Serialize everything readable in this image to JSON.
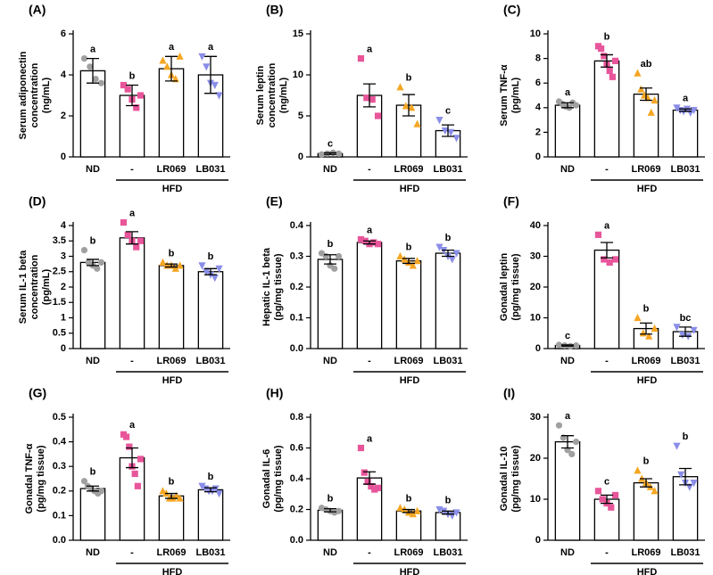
{
  "chart_data": [
    {
      "type": "bar",
      "panel": "(A)",
      "ylabel": [
        "Serum adiponectin",
        "concentration",
        "(ng/mL)"
      ],
      "categories": [
        "ND",
        "-",
        "LR069",
        "LB031"
      ],
      "group_label": "HFD",
      "values": [
        4.2,
        3.0,
        4.3,
        4.0
      ],
      "errors": [
        0.6,
        0.5,
        0.6,
        0.9
      ],
      "letters": [
        "a",
        "b",
        "a",
        "a"
      ],
      "points": [
        [
          4.8,
          4.4,
          3.8,
          3.6
        ],
        [
          3.5,
          3.3,
          2.8,
          2.4,
          3.0
        ],
        [
          4.7,
          4.4,
          4.0,
          3.8,
          4.9
        ],
        [
          4.9,
          4.4,
          3.6,
          3.5,
          3.0
        ]
      ],
      "ylim": [
        0,
        6
      ],
      "yticks": [
        0,
        2,
        4,
        6
      ],
      "colors": [
        "#a0a0a0",
        "#e8559a",
        "#f5a623",
        "#8a8ee8"
      ],
      "markers": [
        "circle",
        "square",
        "triangle-up",
        "triangle-down"
      ]
    },
    {
      "type": "bar",
      "panel": "(B)",
      "ylabel": [
        "Serum leptin",
        "concentration",
        "(ng/mL)"
      ],
      "categories": [
        "ND",
        "-",
        "LR069",
        "LB031"
      ],
      "group_label": "HFD",
      "values": [
        0.4,
        7.5,
        6.3,
        3.2
      ],
      "errors": [
        0.1,
        1.4,
        1.3,
        0.7
      ],
      "letters": [
        "c",
        "a",
        "b",
        "c"
      ],
      "points": [
        [
          0.3,
          0.4,
          0.5,
          0.4
        ],
        [
          12,
          7.2,
          7,
          5
        ],
        [
          8.5,
          6.2,
          6,
          4
        ],
        [
          4.5,
          3.2,
          3,
          2.3
        ]
      ],
      "ylim": [
        0,
        15
      ],
      "yticks": [
        0,
        5,
        10,
        15
      ],
      "colors": [
        "#a0a0a0",
        "#e8559a",
        "#f5a623",
        "#8a8ee8"
      ],
      "markers": [
        "circle",
        "square",
        "triangle-up",
        "triangle-down"
      ]
    },
    {
      "type": "bar",
      "panel": "(C)",
      "ylabel": [
        "Serum TNF-α",
        "(pg/mL)"
      ],
      "categories": [
        "ND",
        "-",
        "LR069",
        "LB031"
      ],
      "group_label": "HFD",
      "values": [
        4.2,
        7.8,
        5.1,
        3.8
      ],
      "errors": [
        0.2,
        0.5,
        0.5,
        0.1
      ],
      "letters": [
        "a",
        "b",
        "ab",
        "a"
      ],
      "points": [
        [
          4.5,
          4.3,
          4.1,
          4.0,
          4.4,
          4.2
        ],
        [
          9.0,
          8.8,
          8.2,
          7.5,
          7.0,
          6.5,
          7.8
        ],
        [
          6.8,
          5.5,
          5.0,
          4.8,
          3.6,
          4.6
        ],
        [
          4.0,
          3.8,
          3.7,
          3.9,
          3.6,
          3.8
        ]
      ],
      "ylim": [
        0,
        10
      ],
      "yticks": [
        0,
        2,
        4,
        6,
        8,
        10
      ],
      "colors": [
        "#a0a0a0",
        "#e8559a",
        "#f5a623",
        "#8a8ee8"
      ],
      "markers": [
        "circle",
        "square",
        "triangle-up",
        "triangle-down"
      ]
    },
    {
      "type": "bar",
      "panel": "(D)",
      "ylabel": [
        "Serum IL-1 beta",
        "concentration",
        "(pg/mL)"
      ],
      "categories": [
        "ND",
        "-",
        "LR069",
        "LB031"
      ],
      "group_label": "HFD",
      "values": [
        2.8,
        3.6,
        2.7,
        2.5
      ],
      "errors": [
        0.1,
        0.2,
        0.05,
        0.1
      ],
      "letters": [
        "b",
        "a",
        "b",
        "b"
      ],
      "points": [
        [
          3.2,
          2.8,
          2.7,
          2.6,
          2.8
        ],
        [
          4.1,
          3.7,
          3.5,
          3.3,
          3.5
        ],
        [
          2.8,
          2.7,
          2.7,
          2.6,
          2.7
        ],
        [
          2.7,
          2.5,
          2.4,
          2.3,
          2.6
        ]
      ],
      "ylim": [
        0,
        4
      ],
      "yticks": [
        0,
        0.5,
        1,
        1.5,
        2,
        2.5,
        3,
        3.5,
        4
      ],
      "colors": [
        "#a0a0a0",
        "#e8559a",
        "#f5a623",
        "#8a8ee8"
      ],
      "markers": [
        "circle",
        "square",
        "triangle-up",
        "triangle-down"
      ]
    },
    {
      "type": "bar",
      "panel": "(E)",
      "ylabel": [
        "Hepatic IL-1 beta",
        "(pg/mg tissue)"
      ],
      "categories": [
        "ND",
        "-",
        "LR069",
        "LB031"
      ],
      "group_label": "HFD",
      "values": [
        0.29,
        0.345,
        0.285,
        0.31
      ],
      "errors": [
        0.015,
        0.005,
        0.008,
        0.01
      ],
      "letters": [
        "b",
        "a",
        "b",
        "b"
      ],
      "points": [
        [
          0.31,
          0.3,
          0.27,
          0.26,
          0.3
        ],
        [
          0.355,
          0.35,
          0.34,
          0.345,
          0.34
        ],
        [
          0.3,
          0.29,
          0.28,
          0.27,
          0.285
        ],
        [
          0.33,
          0.32,
          0.3,
          0.29,
          0.31
        ]
      ],
      "ylim": [
        0,
        0.4
      ],
      "yticks": [
        {
          "value": 0,
          "label": "0.0"
        },
        0.1,
        0.2,
        0.3,
        0.4
      ],
      "colors": [
        "#a0a0a0",
        "#e8559a",
        "#f5a623",
        "#8a8ee8"
      ],
      "markers": [
        "circle",
        "square",
        "triangle-up",
        "triangle-down"
      ]
    },
    {
      "type": "bar",
      "panel": "(F)",
      "ylabel": [
        "Gonadal leptin",
        "(pg/mg tissue)"
      ],
      "categories": [
        "ND",
        "-",
        "LR069",
        "LB031"
      ],
      "group_label": "HFD",
      "values": [
        1,
        32,
        6.5,
        5.5
      ],
      "errors": [
        0.2,
        2.5,
        1.8,
        1.5
      ],
      "letters": [
        "c",
        "a",
        "b",
        "bc"
      ],
      "points": [
        [
          1.2,
          1,
          0.8,
          1
        ],
        [
          37,
          29,
          28,
          29
        ],
        [
          10,
          5,
          4,
          6.5
        ],
        [
          7,
          4.5,
          4,
          6
        ]
      ],
      "ylim": [
        0,
        40
      ],
      "yticks": [
        0,
        10,
        20,
        30,
        40
      ],
      "colors": [
        "#a0a0a0",
        "#e8559a",
        "#f5a623",
        "#8a8ee8"
      ],
      "markers": [
        "circle",
        "square",
        "triangle-up",
        "triangle-down"
      ]
    },
    {
      "type": "bar",
      "panel": "(G)",
      "ylabel": [
        "Gonadal TNF-α",
        "(pg/mg tissue)"
      ],
      "categories": [
        "ND",
        "-",
        "LR069",
        "LB031"
      ],
      "group_label": "HFD",
      "values": [
        0.21,
        0.335,
        0.18,
        0.205
      ],
      "errors": [
        0.01,
        0.04,
        0.01,
        0.008
      ],
      "letters": [
        "b",
        "a",
        "b",
        "b"
      ],
      "points": [
        [
          0.24,
          0.22,
          0.21,
          0.2,
          0.19,
          0.2
        ],
        [
          0.43,
          0.42,
          0.38,
          0.3,
          0.27,
          0.22,
          0.33
        ],
        [
          0.2,
          0.19,
          0.17,
          0.17,
          0.18,
          0.17
        ],
        [
          0.22,
          0.21,
          0.2,
          0.2,
          0.21,
          0.19
        ]
      ],
      "ylim": [
        0,
        0.5
      ],
      "yticks": [
        {
          "value": 0,
          "label": "0.0"
        },
        0.1,
        0.2,
        0.3,
        0.4,
        0.5
      ],
      "colors": [
        "#a0a0a0",
        "#e8559a",
        "#f5a623",
        "#8a8ee8"
      ],
      "markers": [
        "circle",
        "square",
        "triangle-up",
        "triangle-down"
      ]
    },
    {
      "type": "bar",
      "panel": "(H)",
      "ylabel": [
        "Gonadal IL-6",
        "(pg/mg tissue)"
      ],
      "categories": [
        "ND",
        "-",
        "LR069",
        "LB031"
      ],
      "group_label": "HFD",
      "values": [
        0.195,
        0.405,
        0.19,
        0.18
      ],
      "errors": [
        0.01,
        0.04,
        0.01,
        0.01
      ],
      "letters": [
        "b",
        "a",
        "b",
        "b"
      ],
      "points": [
        [
          0.21,
          0.2,
          0.19,
          0.18,
          0.19
        ],
        [
          0.6,
          0.44,
          0.38,
          0.35,
          0.33,
          0.34
        ],
        [
          0.21,
          0.2,
          0.18,
          0.17,
          0.19
        ],
        [
          0.2,
          0.19,
          0.17,
          0.16,
          0.18
        ]
      ],
      "ylim": [
        0,
        0.8
      ],
      "yticks": [
        {
          "value": 0,
          "label": "0.0"
        },
        0.2,
        0.4,
        0.6,
        0.8
      ],
      "colors": [
        "#a0a0a0",
        "#e8559a",
        "#f5a623",
        "#8a8ee8"
      ],
      "markers": [
        "circle",
        "square",
        "triangle-up",
        "triangle-down"
      ]
    },
    {
      "type": "bar",
      "panel": "(I)",
      "ylabel": [
        "Gonadal IL-10",
        "(pg/mg tissue)"
      ],
      "categories": [
        "ND",
        "-",
        "LR069",
        "LB031"
      ],
      "group_label": "HFD",
      "values": [
        24,
        10,
        14,
        15.5
      ],
      "errors": [
        1.5,
        1,
        1,
        2
      ],
      "letters": [
        "a",
        "c",
        "b",
        "b"
      ],
      "points": [
        [
          28,
          25,
          22,
          21,
          24
        ],
        [
          12,
          10,
          9,
          8,
          11
        ],
        [
          17,
          15,
          14,
          13,
          12
        ],
        [
          23,
          16,
          14,
          13,
          14
        ]
      ],
      "ylim": [
        0,
        30
      ],
      "yticks": [
        0,
        10,
        20,
        30
      ],
      "colors": [
        "#a0a0a0",
        "#e8559a",
        "#f5a623",
        "#8a8ee8"
      ],
      "markers": [
        "circle",
        "square",
        "triangle-up",
        "triangle-down"
      ]
    }
  ]
}
